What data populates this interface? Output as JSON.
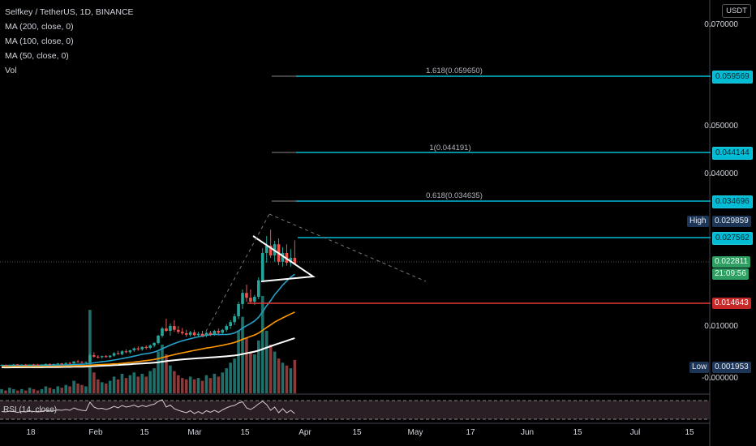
{
  "legend": {
    "symbol": "Selfkey / TetherUS, 1D, BINANCE",
    "ma200": "MA (200, close, 0)",
    "ma100": "MA (100, close, 0)",
    "ma50": "MA (50, close, 0)",
    "vol": "Vol"
  },
  "currency": "USDT",
  "rsi_label": "RSI (14, close)",
  "price_axis": [
    "0.070000",
    "0.050000",
    "0.040000",
    "0.010000",
    "-0.000000"
  ],
  "fib_levels": [
    {
      "label": "1.618(0.059650)",
      "tag": "0.059569"
    },
    {
      "label": "1(0.044191)",
      "tag": "0.044144"
    },
    {
      "label": "0.618(0.034635)",
      "tag": "0.034696"
    }
  ],
  "tags": {
    "high_label": "High",
    "high_value": "0.029859",
    "resistance": "0.027562",
    "current_price": "0.022811",
    "countdown": "21:09:56",
    "support": "0.014643",
    "low_label": "Low",
    "low_value": "0.001953"
  },
  "date_axis": [
    "18",
    "Feb",
    "15",
    "Mar",
    "15",
    "Apr",
    "15",
    "May",
    "17",
    "Jun",
    "15",
    "Jul",
    "15"
  ],
  "colors": {
    "up": "#26a69a",
    "down": "#ef5350",
    "fib": "#00bcd4",
    "support": "#e53935",
    "ma50": "#26a0c8",
    "ma100": "#ff9800",
    "ma200": "#ffffff"
  },
  "chart_data": {
    "type": "candlestick",
    "symbol": "Selfkey / TetherUS",
    "interval": "1D",
    "exchange": "BINANCE",
    "candles": [
      [
        0.00195,
        0.0021,
        0.0019,
        0.002
      ],
      [
        0.002,
        0.0021,
        0.0019,
        0.00195
      ],
      [
        0.00195,
        0.0021,
        0.0019,
        0.002
      ],
      [
        0.002,
        0.0022,
        0.0019,
        0.0021
      ],
      [
        0.0021,
        0.0022,
        0.0019,
        0.002
      ],
      [
        0.002,
        0.0021,
        0.0019,
        0.00205
      ],
      [
        0.00205,
        0.0022,
        0.0019,
        0.002
      ],
      [
        0.002,
        0.0021,
        0.0019,
        0.0021
      ],
      [
        0.0021,
        0.0022,
        0.002,
        0.00205
      ],
      [
        0.00205,
        0.0022,
        0.0019,
        0.002
      ],
      [
        0.002,
        0.0021,
        0.0019,
        0.0021
      ],
      [
        0.0021,
        0.0023,
        0.002,
        0.0022
      ],
      [
        0.0022,
        0.0023,
        0.002,
        0.0021
      ],
      [
        0.0021,
        0.0022,
        0.002,
        0.0022
      ],
      [
        0.0022,
        0.0024,
        0.0021,
        0.0023
      ],
      [
        0.0023,
        0.0024,
        0.0021,
        0.0022
      ],
      [
        0.0022,
        0.0025,
        0.0021,
        0.0024
      ],
      [
        0.0024,
        0.0026,
        0.0022,
        0.0023
      ],
      [
        0.0023,
        0.0028,
        0.0022,
        0.0027
      ],
      [
        0.0027,
        0.003,
        0.0025,
        0.0026
      ],
      [
        0.0026,
        0.0028,
        0.0024,
        0.0025
      ],
      [
        0.0025,
        0.0027,
        0.0023,
        0.0026
      ],
      [
        0.0026,
        0.0044,
        0.0025,
        0.004
      ],
      [
        0.004,
        0.0046,
        0.0035,
        0.0037
      ],
      [
        0.0037,
        0.004,
        0.0033,
        0.0036
      ],
      [
        0.0036,
        0.0039,
        0.0033,
        0.0038
      ],
      [
        0.0038,
        0.004,
        0.0035,
        0.0036
      ],
      [
        0.0036,
        0.004,
        0.0034,
        0.0039
      ],
      [
        0.0039,
        0.0046,
        0.0037,
        0.0044
      ],
      [
        0.0044,
        0.0049,
        0.0041,
        0.0042
      ],
      [
        0.0042,
        0.005,
        0.004,
        0.0048
      ],
      [
        0.0048,
        0.0052,
        0.0044,
        0.0046
      ],
      [
        0.0046,
        0.0051,
        0.0043,
        0.005
      ],
      [
        0.005,
        0.0056,
        0.0047,
        0.0054
      ],
      [
        0.0054,
        0.0058,
        0.0049,
        0.0052
      ],
      [
        0.0052,
        0.0058,
        0.0049,
        0.0057
      ],
      [
        0.0057,
        0.006,
        0.0052,
        0.0055
      ],
      [
        0.0055,
        0.0062,
        0.0052,
        0.006
      ],
      [
        0.006,
        0.0067,
        0.0056,
        0.0065
      ],
      [
        0.0065,
        0.0082,
        0.0062,
        0.008
      ],
      [
        0.008,
        0.0098,
        0.0076,
        0.0095
      ],
      [
        0.0095,
        0.0115,
        0.0088,
        0.009
      ],
      [
        0.009,
        0.0105,
        0.008,
        0.01
      ],
      [
        0.01,
        0.0112,
        0.0088,
        0.0092
      ],
      [
        0.0092,
        0.01,
        0.0084,
        0.0088
      ],
      [
        0.0088,
        0.0096,
        0.0082,
        0.0085
      ],
      [
        0.0085,
        0.0092,
        0.0078,
        0.0082
      ],
      [
        0.0082,
        0.009,
        0.0078,
        0.0087
      ],
      [
        0.0087,
        0.0092,
        0.0079,
        0.0081
      ],
      [
        0.0081,
        0.0088,
        0.0077,
        0.0084
      ],
      [
        0.0084,
        0.009,
        0.0078,
        0.008
      ],
      [
        0.008,
        0.0088,
        0.0077,
        0.0086
      ],
      [
        0.0086,
        0.009,
        0.0079,
        0.0082
      ],
      [
        0.0082,
        0.0092,
        0.008,
        0.009
      ],
      [
        0.009,
        0.0095,
        0.0083,
        0.0086
      ],
      [
        0.0086,
        0.0094,
        0.0084,
        0.0092
      ],
      [
        0.0092,
        0.0104,
        0.0088,
        0.01
      ],
      [
        0.01,
        0.0112,
        0.0094,
        0.0108
      ],
      [
        0.0108,
        0.0125,
        0.0102,
        0.012
      ],
      [
        0.012,
        0.015,
        0.0114,
        0.0145
      ],
      [
        0.0145,
        0.0175,
        0.0135,
        0.0168
      ],
      [
        0.0168,
        0.0185,
        0.015,
        0.0158
      ],
      [
        0.0158,
        0.0175,
        0.0146,
        0.015
      ],
      [
        0.015,
        0.0164,
        0.0143,
        0.016
      ],
      [
        0.016,
        0.02,
        0.0155,
        0.0194
      ],
      [
        0.0194,
        0.026,
        0.019,
        0.025
      ],
      [
        0.025,
        0.0285,
        0.023,
        0.0265
      ],
      [
        0.0265,
        0.0298,
        0.024,
        0.0245
      ],
      [
        0.0245,
        0.0275,
        0.0232,
        0.0268
      ],
      [
        0.0268,
        0.028,
        0.0225,
        0.0232
      ],
      [
        0.0232,
        0.0262,
        0.0222,
        0.025
      ],
      [
        0.025,
        0.0268,
        0.0224,
        0.023
      ],
      [
        0.023,
        0.0258,
        0.0222,
        0.024
      ],
      [
        0.024,
        0.0276,
        0.0226,
        0.0228
      ]
    ],
    "volume": [
      3,
      2,
      4,
      3,
      2,
      3,
      2,
      4,
      3,
      2,
      3,
      5,
      4,
      3,
      5,
      4,
      6,
      5,
      9,
      7,
      6,
      5,
      60,
      15,
      10,
      8,
      7,
      9,
      12,
      10,
      14,
      11,
      13,
      15,
      12,
      14,
      12,
      16,
      18,
      30,
      35,
      28,
      20,
      16,
      13,
      11,
      10,
      12,
      10,
      11,
      9,
      13,
      11,
      14,
      12,
      15,
      18,
      22,
      25,
      45,
      55,
      40,
      30,
      28,
      38,
      70,
      45,
      35,
      30,
      25,
      22,
      20,
      18,
      24
    ],
    "rsi": [
      55,
      54,
      56,
      55,
      53,
      55,
      54,
      56,
      55,
      54,
      55,
      58,
      56,
      57,
      59,
      58,
      60,
      58,
      64,
      60,
      58,
      57,
      78,
      66,
      62,
      63,
      60,
      63,
      68,
      64,
      70,
      66,
      68,
      71,
      66,
      70,
      67,
      71,
      73,
      80,
      84,
      66,
      71,
      62,
      58,
      55,
      52,
      57,
      50,
      55,
      50,
      57,
      53,
      58,
      53,
      59,
      64,
      68,
      70,
      76,
      79,
      64,
      60,
      66,
      74,
      80,
      72,
      58,
      66,
      52,
      62,
      52,
      58,
      50
    ],
    "fibonacci": [
      {
        "ratio": 1.618,
        "price": 0.05965
      },
      {
        "ratio": 1,
        "price": 0.044191
      },
      {
        "ratio": 0.618,
        "price": 0.034635
      }
    ],
    "y_axis_ticks": [
      0.07,
      0.05,
      0.04,
      0.01,
      0
    ],
    "high": 0.029859,
    "low": 0.001953,
    "last_price": 0.022811
  }
}
